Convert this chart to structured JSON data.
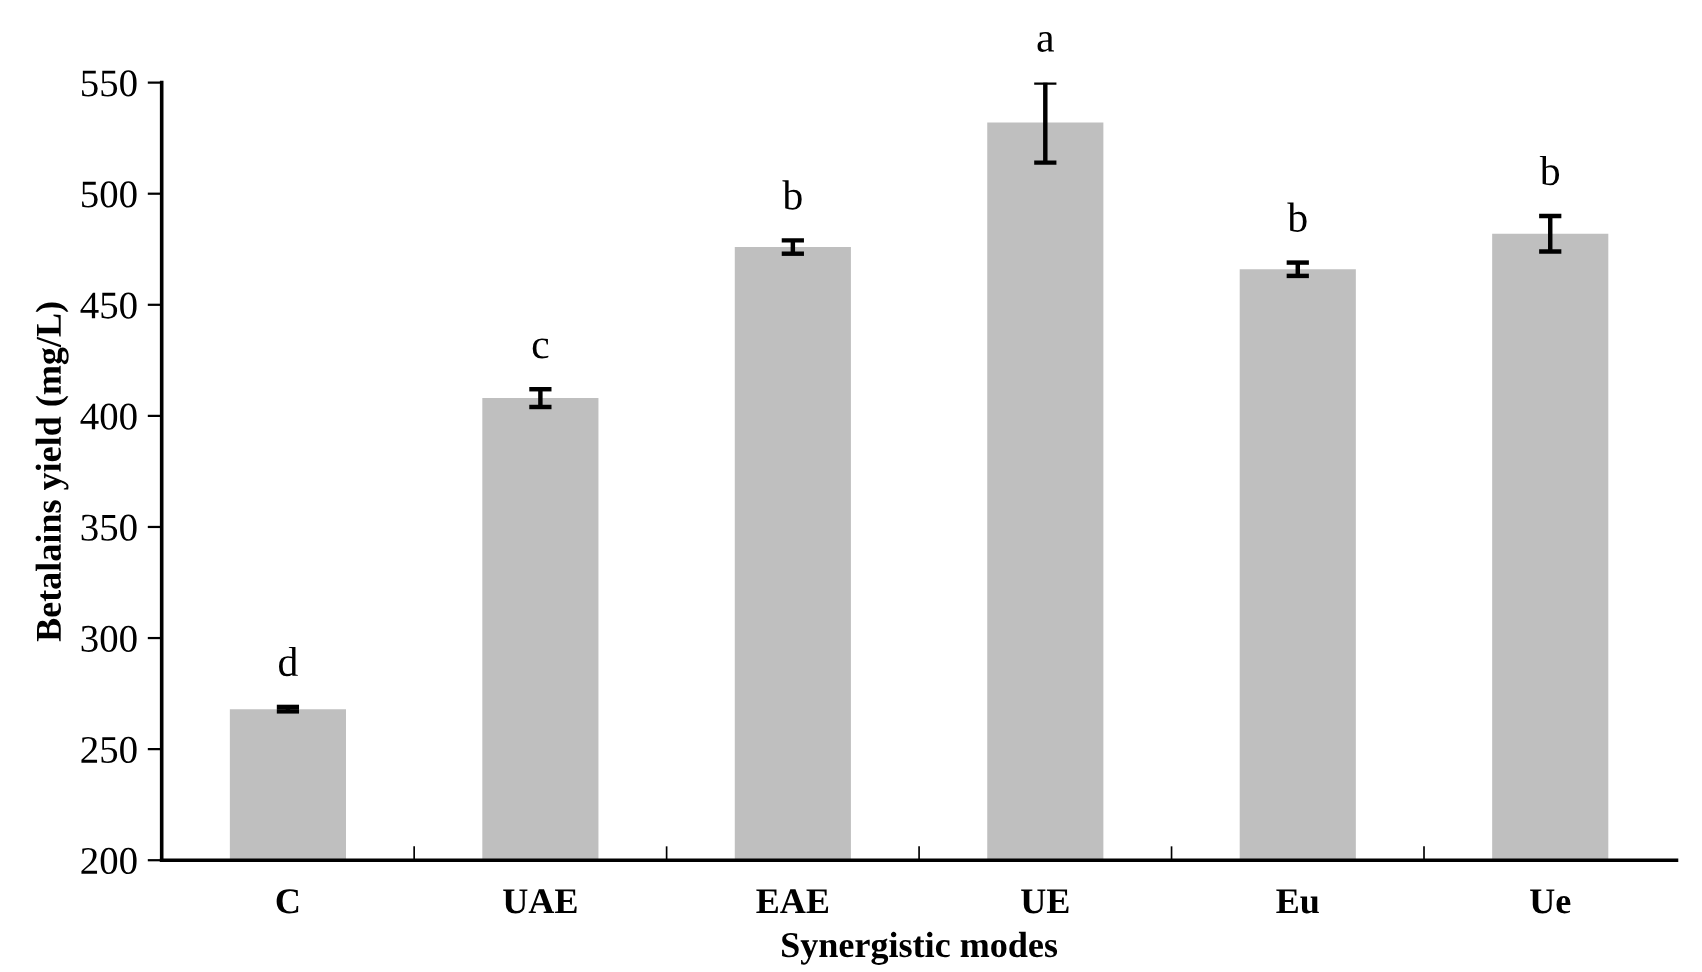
{
  "chart_data": {
    "type": "bar",
    "xlabel": "Synergistic modes",
    "ylabel": "Betalains yield (mg/L)",
    "categories": [
      "C",
      "UAE",
      "EAE",
      "UE",
      "Eu",
      "Ue"
    ],
    "values": [
      268,
      408,
      476,
      532,
      466,
      482
    ],
    "errors": [
      1,
      4,
      3,
      18,
      3,
      8
    ],
    "color": "#bfbfbf",
    "ylim": [
      200,
      550
    ],
    "yticks": [
      200,
      250,
      300,
      350,
      400,
      450,
      500,
      550
    ],
    "grid": false,
    "legend": false,
    "annotations": [
      {
        "text": "d",
        "x": "C",
        "y": 269
      },
      {
        "text": "c",
        "x": "UAE",
        "y": 412
      },
      {
        "text": "b",
        "x": "EAE",
        "y": 479
      },
      {
        "text": "a",
        "x": "UE",
        "y": 550
      },
      {
        "text": "b",
        "x": "Eu",
        "y": 469
      },
      {
        "text": "b",
        "x": "Ue",
        "y": 490
      }
    ]
  }
}
